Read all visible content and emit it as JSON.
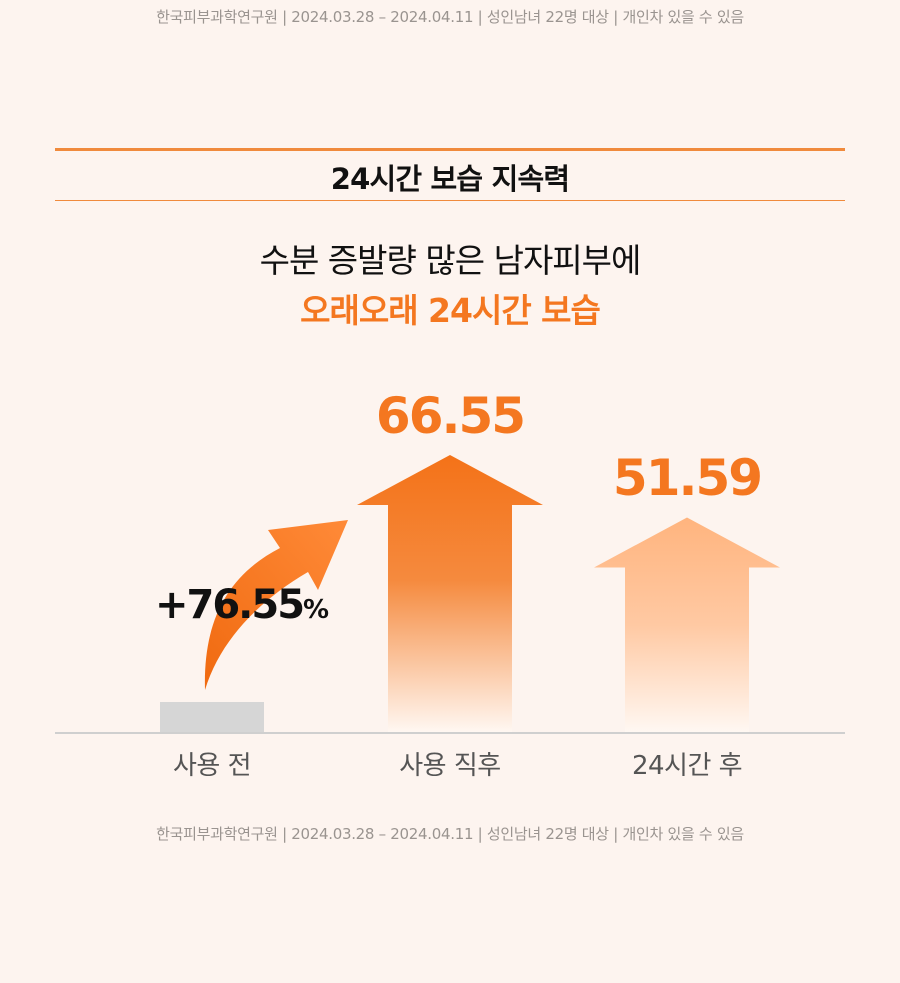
{
  "footnote": "한국피부과학연구원 | 2024.03.28 – 2024.04.11 | 성인남녀 22명 대상 | 개인차 있을 수 있음",
  "section_title": "24시간 보습 지속력",
  "headline": {
    "line1": "수분 증발량 많은 남자피부에",
    "line2": "오래오래 24시간 보습"
  },
  "chart_data": {
    "type": "bar",
    "categories": [
      "사용 전",
      "사용 직후",
      "24시간 후"
    ],
    "values": [
      null,
      66.55,
      51.59
    ],
    "value_labels": [
      "",
      "66.55",
      "51.59"
    ],
    "annotation": {
      "sign_value": "+76.55",
      "unit": "%"
    },
    "colors": {
      "before": "#d6d6d6",
      "after": "#f47720",
      "after24": "#ffb07a",
      "axis": "#cfcfcf"
    }
  }
}
